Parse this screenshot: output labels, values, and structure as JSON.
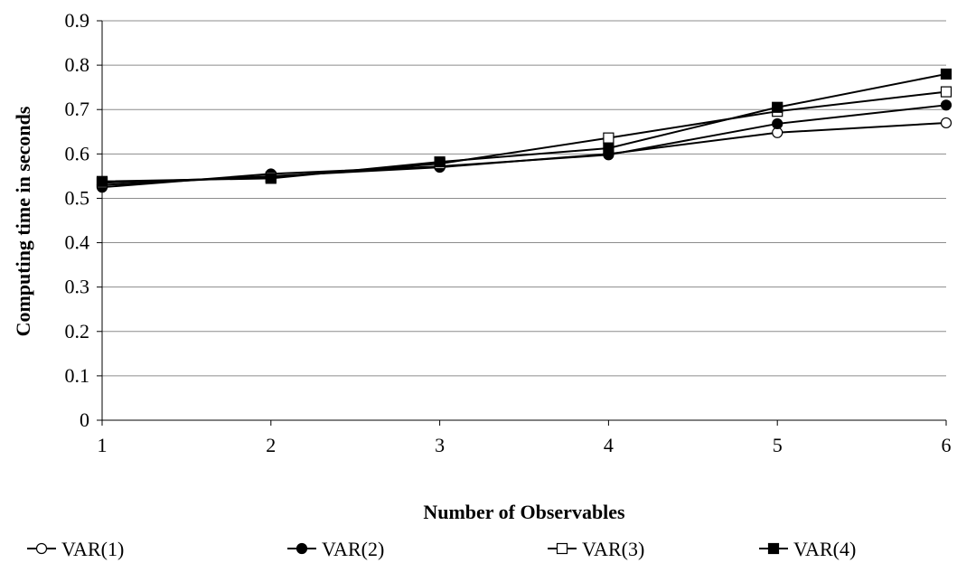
{
  "chart_data": {
    "type": "line",
    "title": "",
    "xlabel": "Number of Observables",
    "ylabel": "Computing time in seconds",
    "categories": [
      "1",
      "2",
      "3",
      "4",
      "5",
      "6"
    ],
    "x": [
      1,
      2,
      3,
      4,
      5,
      6
    ],
    "xlim": [
      1,
      6
    ],
    "ylim": [
      0,
      0.9
    ],
    "yticks": [
      "0",
      "0.1",
      "0.2",
      "0.3",
      "0.4",
      "0.5",
      "0.6",
      "0.7",
      "0.8",
      "0.9"
    ],
    "ytick_values": [
      0,
      0.1,
      0.2,
      0.3,
      0.4,
      0.5,
      0.6,
      0.7,
      0.8,
      0.9
    ],
    "grid": "horizontal",
    "legend_position": "bottom",
    "series": [
      {
        "name": "VAR(1)",
        "marker": "circle-open",
        "color": "#000000",
        "values": [
          0.53,
          0.55,
          0.57,
          0.6,
          0.648,
          0.67
        ]
      },
      {
        "name": "VAR(2)",
        "marker": "circle-filled",
        "color": "#000000",
        "values": [
          0.525,
          0.555,
          0.572,
          0.598,
          0.668,
          0.71
        ]
      },
      {
        "name": "VAR(3)",
        "marker": "square-open",
        "color": "#000000",
        "values": [
          0.535,
          0.548,
          0.578,
          0.636,
          0.696,
          0.74
        ]
      },
      {
        "name": "VAR(4)",
        "marker": "square-filled",
        "color": "#000000",
        "values": [
          0.538,
          0.545,
          0.582,
          0.613,
          0.705,
          0.78
        ]
      }
    ]
  }
}
